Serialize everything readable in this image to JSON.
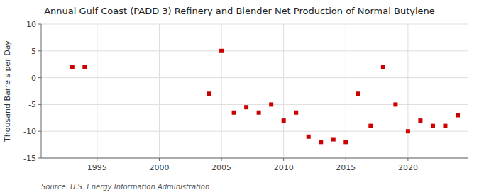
{
  "chart_data": {
    "type": "scatter",
    "title": "Annual Gulf Coast (PADD 3) Refinery and Blender Net Production of Normal Butylene",
    "ylabel": "Thousand Barrels per Day",
    "source": "Source: U.S. Energy Information Administration",
    "x": [
      1993,
      1994,
      2004,
      2005,
      2006,
      2007,
      2008,
      2009,
      2010,
      2011,
      2012,
      2013,
      2014,
      2015,
      2016,
      2017,
      2018,
      2019,
      2020,
      2021,
      2022,
      2023,
      2024
    ],
    "values": [
      2.0,
      2.0,
      -3.0,
      5.0,
      -6.5,
      -5.5,
      -6.5,
      -5.0,
      -8.0,
      -6.5,
      -11.0,
      -12.0,
      -11.5,
      -12.0,
      -3.0,
      -9.0,
      2.0,
      -5.0,
      -10.0,
      -8.0,
      -9.0,
      -9.0,
      -7.0
    ],
    "color": "#cc0000",
    "marker": "square",
    "xlim": [
      1990.5,
      2024.8
    ],
    "ylim": [
      -15,
      10
    ],
    "xticks": [
      1995,
      2000,
      2005,
      2010,
      2015,
      2020
    ],
    "yticks": [
      -15,
      -10,
      -5,
      0,
      5,
      10
    ],
    "grid": true
  }
}
